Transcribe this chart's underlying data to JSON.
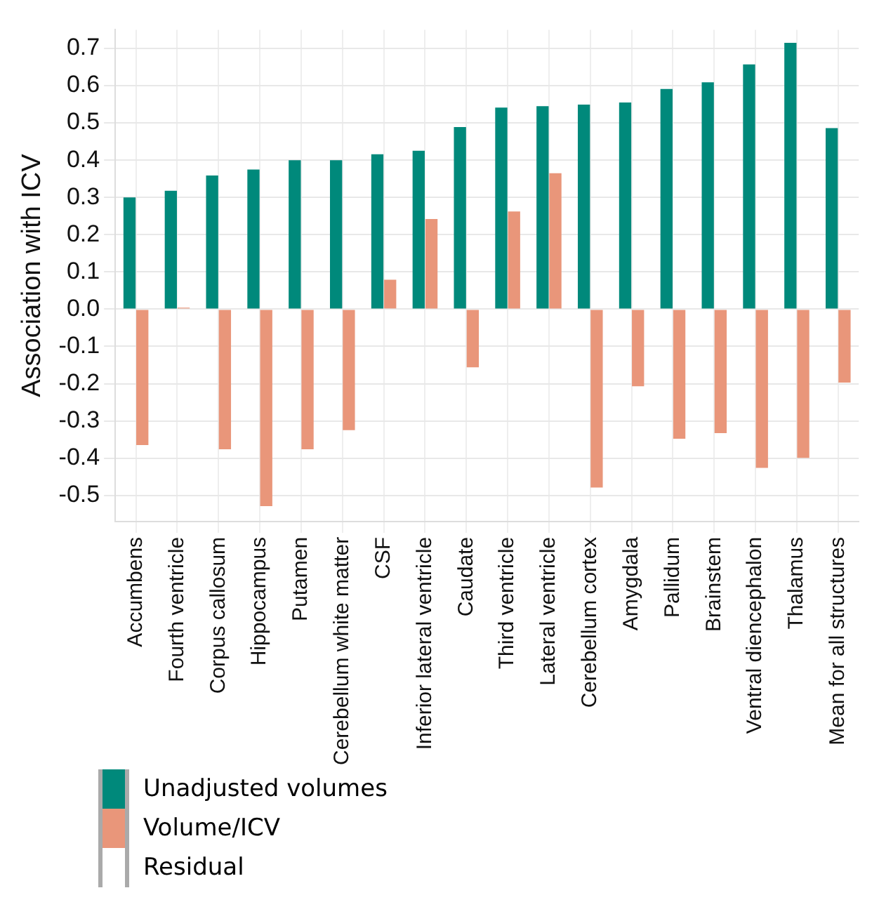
{
  "chart_data": {
    "type": "bar",
    "ylabel": "Association with ICV",
    "categories": [
      "Accumbens",
      "Fourth ventricle",
      "Corpus callosum",
      "Hippocampus",
      "Putamen",
      "Cerebellum white matter",
      "CSF",
      "Inferior lateral ventricle",
      "Caudate",
      "Third ventricle",
      "Lateral ventricle",
      "Cerebellum cortex",
      "Amygdala",
      "Pallidum",
      "Brainstem",
      "Ventral diencephalon",
      "Thalamus",
      "Mean for all structures"
    ],
    "series": [
      {
        "name": "Unadjusted volumes",
        "color": "#00897b",
        "values": [
          0.3,
          0.318,
          0.359,
          0.375,
          0.4,
          0.4,
          0.416,
          0.425,
          0.489,
          0.541,
          0.545,
          0.549,
          0.555,
          0.591,
          0.609,
          0.657,
          0.715,
          0.486
        ]
      },
      {
        "name": "Volume/ICV",
        "color": "#e9967a",
        "values": [
          -0.365,
          0.004,
          -0.376,
          -0.529,
          -0.376,
          -0.325,
          0.079,
          0.242,
          -0.156,
          0.262,
          0.365,
          -0.479,
          -0.207,
          -0.348,
          -0.333,
          -0.426,
          -0.399,
          -0.197
        ]
      },
      {
        "name": "Residual",
        "color": "#ffffff",
        "values": [
          null,
          null,
          null,
          null,
          null,
          null,
          null,
          null,
          null,
          null,
          null,
          null,
          null,
          null,
          null,
          null,
          null,
          null
        ]
      }
    ],
    "ylim": [
      -0.57,
      0.75
    ],
    "yticks": [
      -0.5,
      -0.4,
      -0.3,
      -0.2,
      -0.1,
      {
        "value": 0,
        "label": "0.0"
      },
      0.1,
      0.2,
      0.3,
      0.4,
      0.5,
      0.6,
      0.7
    ],
    "grid": true,
    "legend": "bottom left"
  }
}
